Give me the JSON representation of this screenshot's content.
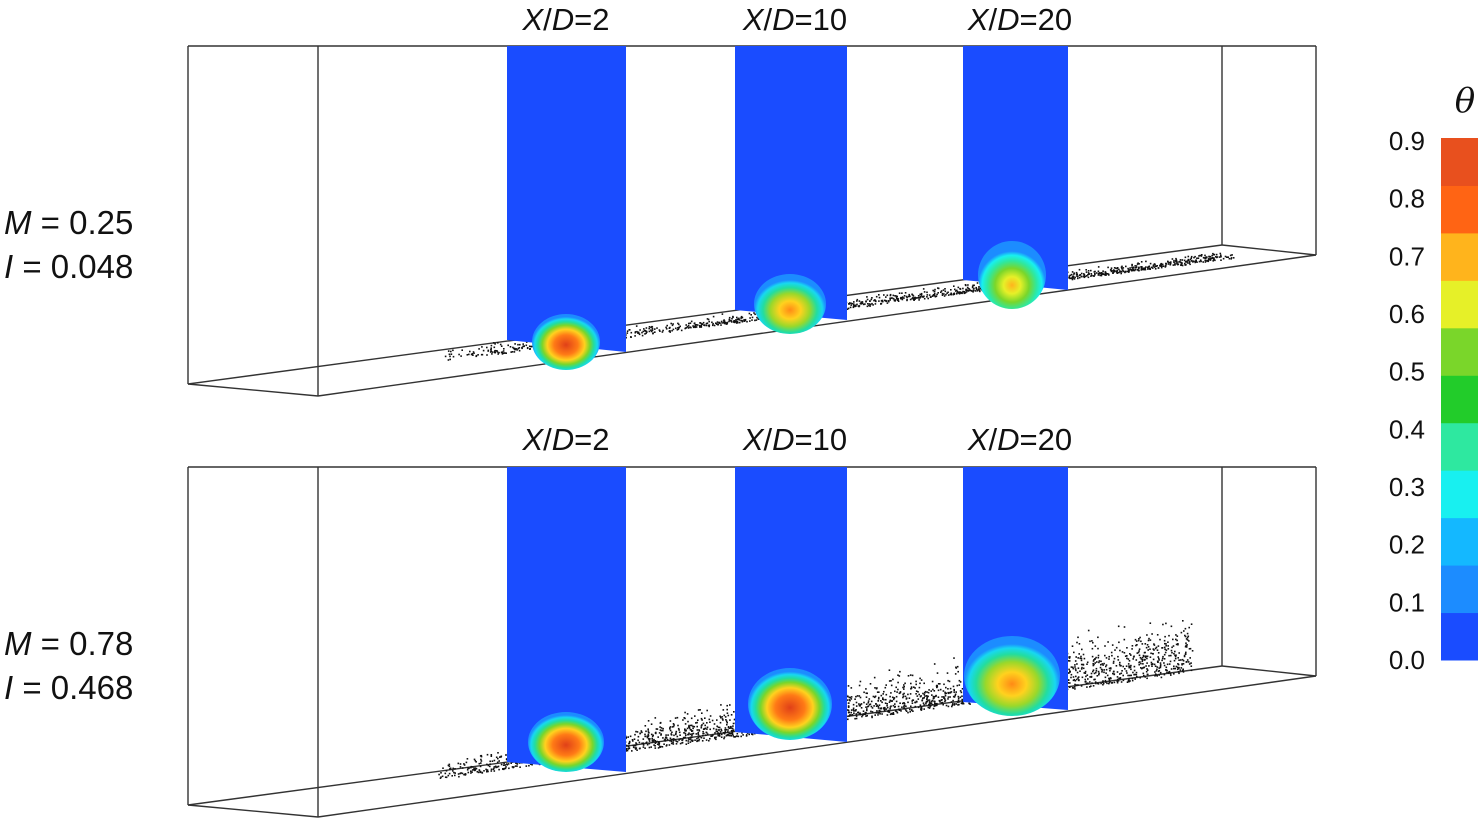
{
  "colorbar": {
    "title": "θ",
    "ticks": [
      "0.0",
      "0.1",
      "0.2",
      "0.3",
      "0.4",
      "0.5",
      "0.6",
      "0.7",
      "0.8",
      "0.9"
    ],
    "colors": [
      "#1a4cff",
      "#1c8cff",
      "#14b8ff",
      "#18f0f0",
      "#2ee8a0",
      "#22cc2a",
      "#7ad62a",
      "#e6f028",
      "#ffb41c",
      "#ff6414",
      "#e8501e"
    ]
  },
  "panels": [
    {
      "param1_var": "M",
      "param1_val": "0.25",
      "param2_var": "I",
      "param2_val": "0.048",
      "planes": [
        {
          "x_label": "X",
          "d_label": "D",
          "value": "=2",
          "peak": 0.9
        },
        {
          "x_label": "X",
          "d_label": "D",
          "value": "=10",
          "peak": 0.8
        },
        {
          "x_label": "X",
          "d_label": "D",
          "value": "=20",
          "peak": 0.7
        }
      ]
    },
    {
      "param1_var": "M",
      "param1_val": "0.78",
      "param2_var": "I",
      "param2_val": "0.468",
      "planes": [
        {
          "x_label": "X",
          "d_label": "D",
          "value": "=2",
          "peak": 0.9
        },
        {
          "x_label": "X",
          "d_label": "D",
          "value": "=10",
          "peak": 0.9
        },
        {
          "x_label": "X",
          "d_label": "D",
          "value": "=20",
          "peak": 0.8
        }
      ]
    }
  ]
}
